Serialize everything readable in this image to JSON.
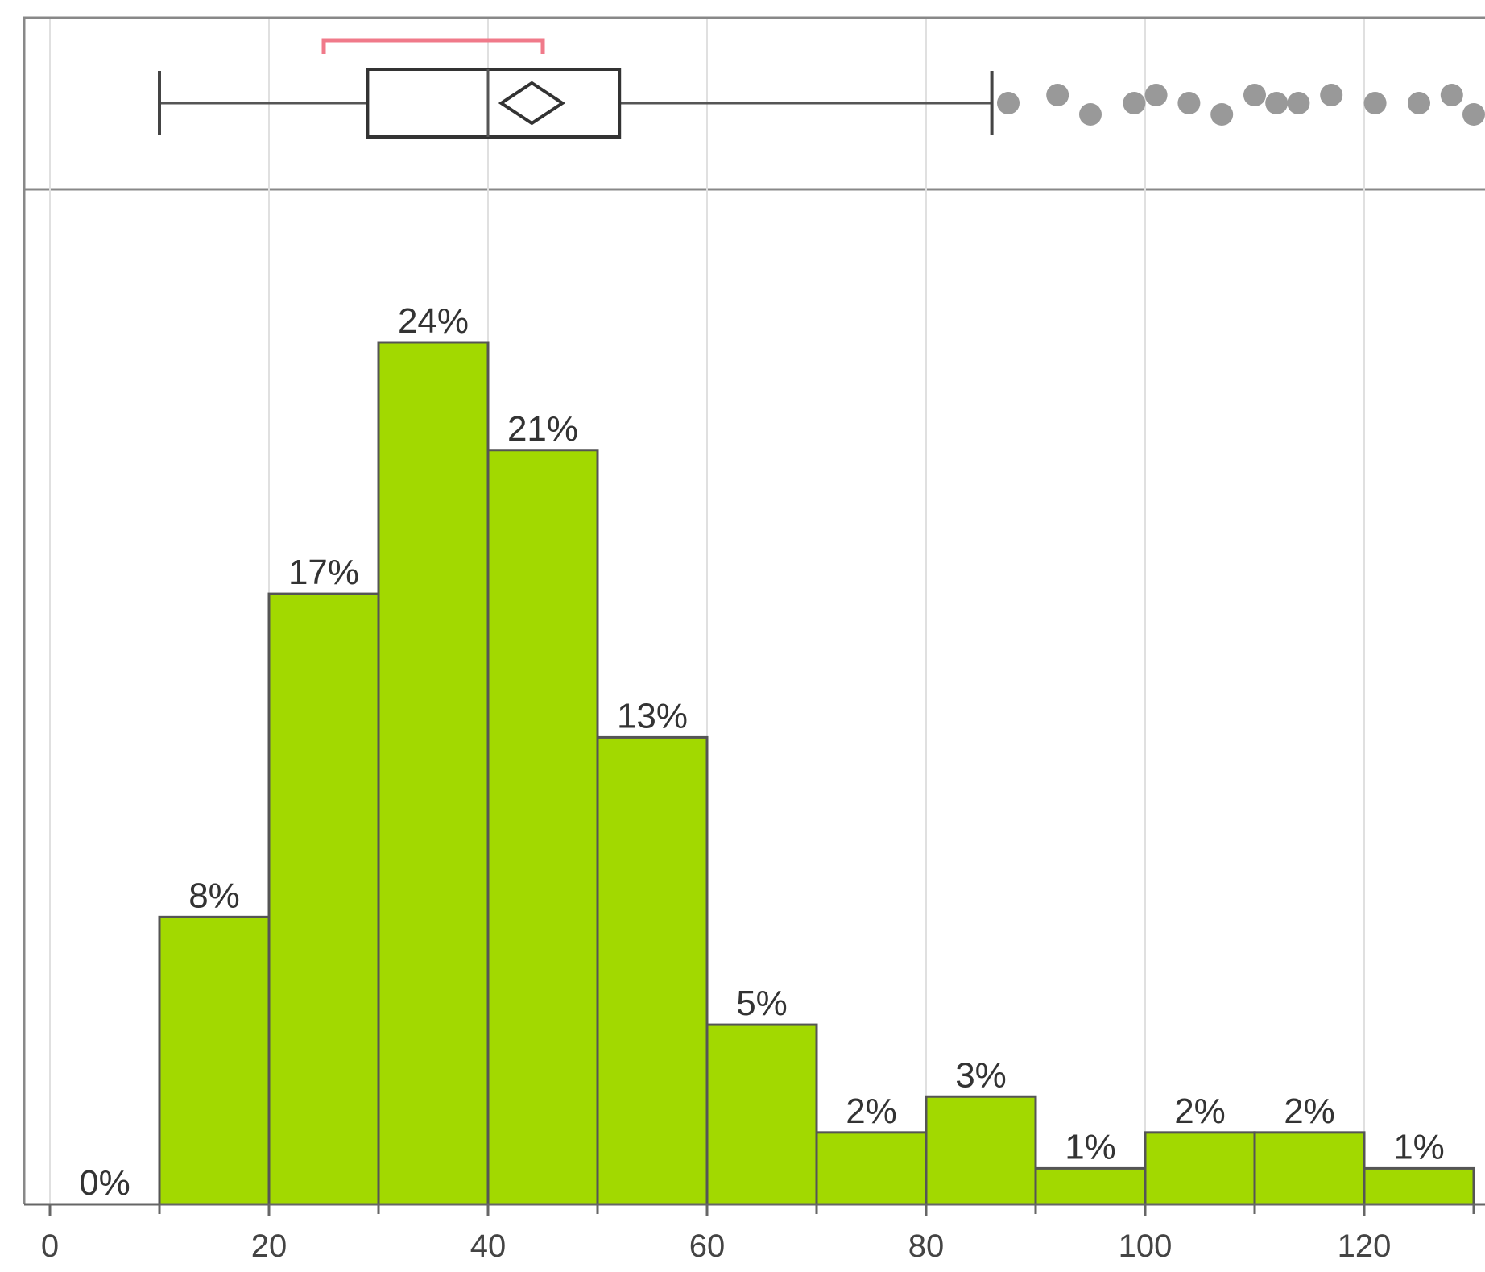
{
  "chart_data": {
    "type": "histogram",
    "bin_edges": [
      0,
      10,
      20,
      30,
      40,
      50,
      60,
      70,
      80,
      90,
      100,
      110,
      120,
      130
    ],
    "bins": [
      {
        "x0": 0,
        "x1": 10,
        "value": 0,
        "label": "0%"
      },
      {
        "x0": 10,
        "x1": 20,
        "value": 8,
        "label": "8%"
      },
      {
        "x0": 20,
        "x1": 30,
        "value": 17,
        "label": "17%"
      },
      {
        "x0": 30,
        "x1": 40,
        "value": 24,
        "label": "24%"
      },
      {
        "x0": 40,
        "x1": 50,
        "value": 21,
        "label": "21%"
      },
      {
        "x0": 50,
        "x1": 60,
        "value": 13,
        "label": "13%"
      },
      {
        "x0": 60,
        "x1": 70,
        "value": 5,
        "label": "5%"
      },
      {
        "x0": 70,
        "x1": 80,
        "value": 2,
        "label": "2%"
      },
      {
        "x0": 80,
        "x1": 90,
        "value": 3,
        "label": "3%"
      },
      {
        "x0": 90,
        "x1": 100,
        "value": 1,
        "label": "1%"
      },
      {
        "x0": 100,
        "x1": 110,
        "value": 2,
        "label": "2%"
      },
      {
        "x0": 110,
        "x1": 120,
        "value": 2,
        "label": "2%"
      },
      {
        "x0": 120,
        "x1": 130,
        "value": 1,
        "label": "1%"
      }
    ],
    "x_ticks": [
      0,
      20,
      40,
      60,
      80,
      100,
      120
    ],
    "x_tick_labels": [
      "0",
      "20",
      "40",
      "60",
      "80",
      "100",
      "120"
    ],
    "xlim": [
      -1,
      131
    ],
    "ylim": [
      0,
      25
    ],
    "grid": true,
    "boxplot": {
      "whisker_low": 10,
      "q1": 29,
      "median": 40,
      "q3": 52,
      "whisker_high": 86,
      "mean": 44,
      "mean_ci_bracket": [
        25,
        45
      ],
      "outliers": [
        87.5,
        92,
        95,
        99,
        101,
        104,
        107,
        110,
        112,
        114,
        117,
        121,
        125,
        128,
        130
      ]
    },
    "colors": {
      "bar_fill": "#a2d900",
      "bar_stroke": "#555555",
      "grid": "#e0e0e0",
      "outlier": "#999999",
      "bracket": "#f07a8a",
      "axis": "#666666"
    }
  }
}
